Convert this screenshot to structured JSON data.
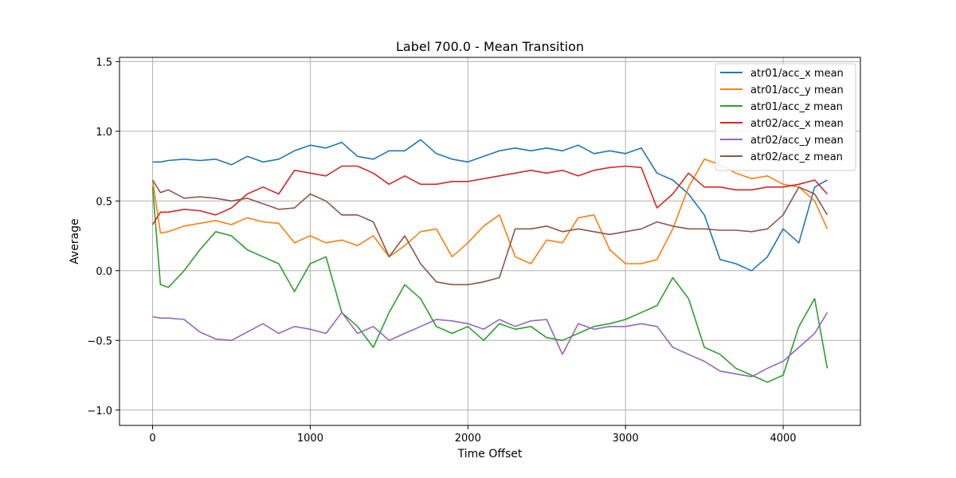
{
  "chart_data": {
    "type": "line",
    "title": "Label 700.0 - Mean Transition",
    "xlabel": "Time Offset",
    "ylabel": "Average",
    "xlim": [
      -210,
      4490
    ],
    "ylim": [
      -1.11,
      1.53
    ],
    "xticks": [
      0,
      1000,
      2000,
      3000,
      4000
    ],
    "xtick_labels": [
      "0",
      "1000",
      "2000",
      "3000",
      "4000"
    ],
    "yticks": [
      -1.0,
      -0.5,
      0.0,
      0.5,
      1.0,
      1.5
    ],
    "ytick_labels": [
      "−1.0",
      "−0.5",
      "0.0",
      "0.5",
      "1.0",
      "1.5"
    ],
    "grid": true,
    "legend_position": "top-right",
    "x": [
      0,
      50,
      100,
      200,
      300,
      400,
      500,
      600,
      700,
      800,
      900,
      1000,
      1100,
      1200,
      1300,
      1400,
      1500,
      1600,
      1700,
      1800,
      1900,
      2000,
      2100,
      2200,
      2300,
      2400,
      2500,
      2600,
      2700,
      2800,
      2900,
      3000,
      3100,
      3200,
      3300,
      3400,
      3500,
      3600,
      3700,
      3800,
      3900,
      4000,
      4100,
      4200,
      4280
    ],
    "series": [
      {
        "name": "atr01/acc_x mean",
        "color": "#1f77b4",
        "values": [
          0.78,
          0.78,
          0.79,
          0.8,
          0.79,
          0.8,
          0.76,
          0.82,
          0.78,
          0.8,
          0.86,
          0.9,
          0.88,
          0.92,
          0.82,
          0.8,
          0.86,
          0.86,
          0.94,
          0.84,
          0.8,
          0.78,
          0.82,
          0.86,
          0.88,
          0.86,
          0.88,
          0.86,
          0.9,
          0.84,
          0.86,
          0.84,
          0.88,
          0.7,
          0.65,
          0.55,
          0.4,
          0.08,
          0.05,
          0.0,
          0.1,
          0.3,
          0.2,
          0.6,
          0.65
        ]
      },
      {
        "name": "atr01/acc_y mean",
        "color": "#ff7f0e",
        "values": [
          0.65,
          0.27,
          0.28,
          0.32,
          0.34,
          0.36,
          0.33,
          0.38,
          0.35,
          0.34,
          0.2,
          0.25,
          0.2,
          0.22,
          0.18,
          0.25,
          0.1,
          0.18,
          0.28,
          0.3,
          0.1,
          0.2,
          0.32,
          0.4,
          0.1,
          0.05,
          0.22,
          0.2,
          0.38,
          0.4,
          0.15,
          0.05,
          0.05,
          0.08,
          0.3,
          0.6,
          0.8,
          0.76,
          0.7,
          0.66,
          0.68,
          0.62,
          0.6,
          0.5,
          0.3
        ]
      },
      {
        "name": "atr01/acc_z mean",
        "color": "#2ca02c",
        "values": [
          0.6,
          -0.1,
          -0.12,
          0.0,
          0.15,
          0.28,
          0.25,
          0.15,
          0.1,
          0.05,
          -0.15,
          0.05,
          0.1,
          -0.3,
          -0.4,
          -0.55,
          -0.3,
          -0.1,
          -0.2,
          -0.4,
          -0.45,
          -0.4,
          -0.5,
          -0.38,
          -0.42,
          -0.4,
          -0.48,
          -0.5,
          -0.45,
          -0.4,
          -0.38,
          -0.35,
          -0.3,
          -0.25,
          -0.05,
          -0.2,
          -0.55,
          -0.6,
          -0.7,
          -0.75,
          -0.8,
          -0.75,
          -0.4,
          -0.2,
          -0.7
        ]
      },
      {
        "name": "atr02/acc_x mean",
        "color": "#d62728",
        "values": [
          0.33,
          0.42,
          0.42,
          0.44,
          0.43,
          0.4,
          0.45,
          0.55,
          0.6,
          0.55,
          0.72,
          0.7,
          0.68,
          0.75,
          0.75,
          0.7,
          0.62,
          0.68,
          0.62,
          0.62,
          0.64,
          0.64,
          0.66,
          0.68,
          0.7,
          0.72,
          0.7,
          0.72,
          0.68,
          0.72,
          0.74,
          0.75,
          0.74,
          0.45,
          0.55,
          0.7,
          0.6,
          0.6,
          0.58,
          0.58,
          0.6,
          0.6,
          0.62,
          0.65,
          0.55
        ]
      },
      {
        "name": "atr02/acc_y mean",
        "color": "#9467bd",
        "values": [
          -0.33,
          -0.34,
          -0.34,
          -0.35,
          -0.44,
          -0.49,
          -0.5,
          -0.44,
          -0.38,
          -0.45,
          -0.4,
          -0.42,
          -0.45,
          -0.3,
          -0.45,
          -0.4,
          -0.5,
          -0.45,
          -0.4,
          -0.35,
          -0.36,
          -0.38,
          -0.42,
          -0.35,
          -0.4,
          -0.36,
          -0.35,
          -0.6,
          -0.38,
          -0.42,
          -0.4,
          -0.4,
          -0.38,
          -0.4,
          -0.55,
          -0.6,
          -0.65,
          -0.72,
          -0.74,
          -0.76,
          -0.7,
          -0.65,
          -0.55,
          -0.45,
          -0.3
        ]
      },
      {
        "name": "atr02/acc_z mean",
        "color": "#8c564b",
        "values": [
          0.65,
          0.56,
          0.58,
          0.52,
          0.53,
          0.52,
          0.5,
          0.52,
          0.48,
          0.44,
          0.45,
          0.55,
          0.5,
          0.4,
          0.4,
          0.35,
          0.1,
          0.25,
          0.05,
          -0.08,
          -0.1,
          -0.1,
          -0.08,
          -0.05,
          0.3,
          0.3,
          0.32,
          0.28,
          0.3,
          0.28,
          0.26,
          0.28,
          0.3,
          0.35,
          0.32,
          0.3,
          0.3,
          0.29,
          0.29,
          0.28,
          0.3,
          0.4,
          0.6,
          0.55,
          0.4
        ]
      }
    ]
  }
}
